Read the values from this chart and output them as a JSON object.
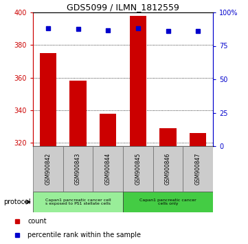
{
  "title": "GDS5099 / ILMN_1812559",
  "samples": [
    "GSM900842",
    "GSM900843",
    "GSM900844",
    "GSM900845",
    "GSM900846",
    "GSM900847"
  ],
  "counts": [
    375,
    358,
    338,
    398,
    329,
    326
  ],
  "percentile_ranks": [
    88,
    87.5,
    86.5,
    88,
    86,
    86
  ],
  "ylim_left": [
    318,
    400
  ],
  "ylim_right": [
    0,
    100
  ],
  "yticks_left": [
    320,
    340,
    360,
    380,
    400
  ],
  "yticks_right": [
    0,
    25,
    50,
    75,
    100
  ],
  "bar_color": "#cc0000",
  "dot_color": "#0000cc",
  "bar_bottom": 318,
  "group1_color": "#99ee99",
  "group2_color": "#44cc44",
  "gray_box_color": "#cccccc",
  "left_axis_color": "#cc0000",
  "right_axis_color": "#0000cc",
  "background_color": "#ffffff"
}
